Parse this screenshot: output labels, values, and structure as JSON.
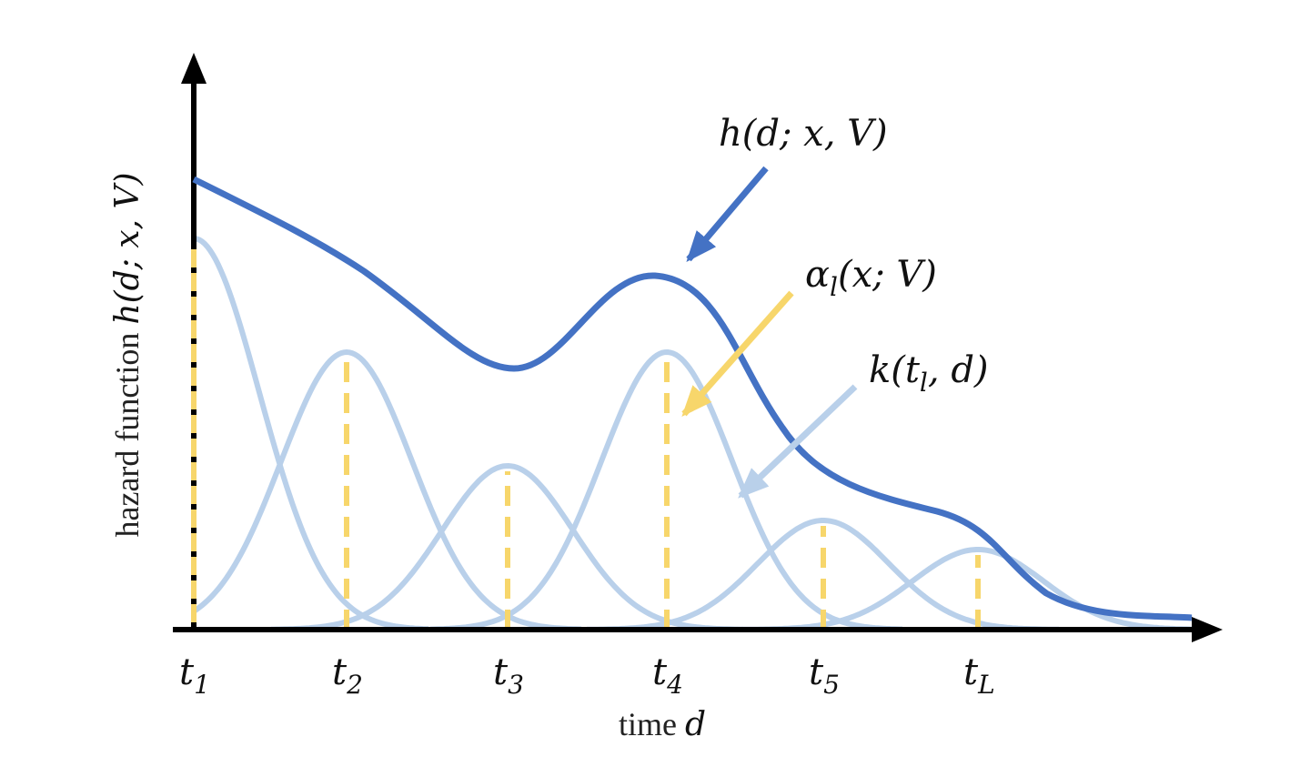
{
  "axes": {
    "y_label": {
      "main": "hazard function ",
      "expr": "h(d; x, V)"
    },
    "x_label": {
      "main": "time ",
      "expr": "d"
    },
    "x_ticks": [
      {
        "symbol": "t",
        "subscript": "1"
      },
      {
        "symbol": "t",
        "subscript": "2"
      },
      {
        "symbol": "t",
        "subscript": "3"
      },
      {
        "symbol": "t",
        "subscript": "4"
      },
      {
        "symbol": "t",
        "subscript": "5"
      },
      {
        "symbol": "t",
        "subscript": "L"
      }
    ]
  },
  "annotations": {
    "hazard": {
      "text": "h(d; x, V)"
    },
    "weight": {
      "main": "α",
      "subscript": "l",
      "rest": "(x; V)"
    },
    "kernel": {
      "main": "k(t",
      "subscript": "l",
      "rest": ", d)"
    }
  }
}
